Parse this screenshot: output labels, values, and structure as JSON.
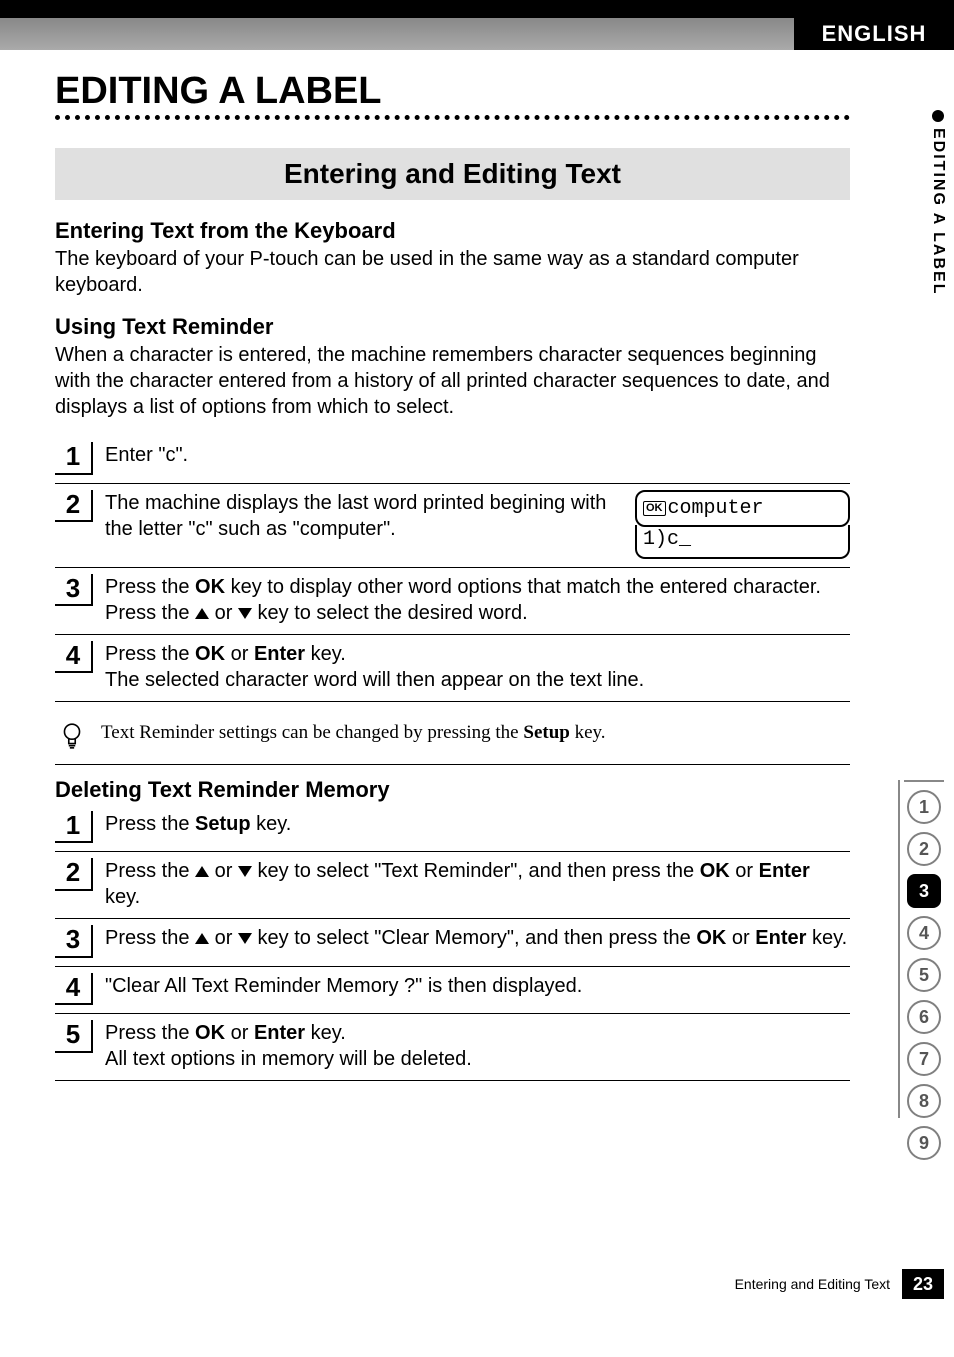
{
  "header": {
    "language": "ENGLISH"
  },
  "side": {
    "label": "EDITING A LABEL"
  },
  "chapter": {
    "title": "EDITING A LABEL"
  },
  "section": {
    "title": "Entering and Editing Text"
  },
  "sub1": {
    "heading": "Entering Text from the Keyboard",
    "body": "The keyboard of your P-touch can be used in the same way as a standard computer keyboard."
  },
  "sub2": {
    "heading": "Using Text Reminder",
    "body": "When a character is entered, the machine remembers character sequences beginning with the character entered from a history of all printed character sequences to date, and displays a list of options from which to select."
  },
  "steps1": [
    {
      "num": "1",
      "html": "Enter \"c\"."
    },
    {
      "num": "2",
      "html": "The machine displays the last word printed begining with the letter \"c\" such as \"computer\".",
      "lcd": true
    },
    {
      "num": "3",
      "html": "Press the <b>OK</b> key to display other word options that match the entered character. Press the <span class='tri-up'></span> or <span class='tri-down'></span> key to select the desired word."
    },
    {
      "num": "4",
      "html": "Press the <b>OK</b> or <b>Enter</b> key.<br>The selected character word will then appear on the text line."
    }
  ],
  "lcd": {
    "top_prefix": "OK",
    "top_text": "computer",
    "bottom_text": "1)c_"
  },
  "tip": {
    "pre": "Text Reminder settings can be changed by pressing the ",
    "bold": "Setup",
    "post": " key."
  },
  "sub3": {
    "heading": "Deleting Text Reminder Memory"
  },
  "steps2": [
    {
      "num": "1",
      "html": "Press the <b>Setup</b> key."
    },
    {
      "num": "2",
      "html": "Press the <span class='tri-up'></span> or <span class='tri-down'></span> key to select \"Text Reminder\", and then press the <b>OK</b> or <b>Enter</b> key."
    },
    {
      "num": "3",
      "html": "Press the <span class='tri-up'></span> or <span class='tri-down'></span> key to select \"Clear Memory\", and then press the <b>OK</b> or <b>Enter</b> key."
    },
    {
      "num": "4",
      "html": "\"Clear All Text Reminder Memory ?\" is then displayed."
    },
    {
      "num": "5",
      "html": "Press the <b>OK</b> or <b>Enter</b> key.<br>All text options in memory will be deleted."
    }
  ],
  "tabs": {
    "items": [
      "1",
      "2",
      "3",
      "4",
      "5",
      "6",
      "7",
      "8",
      "9"
    ],
    "active_index": 2
  },
  "footer": {
    "text": "Entering and Editing Text",
    "page": "23"
  },
  "colors": {
    "black": "#000000",
    "gray_band": "#999999",
    "section_bg": "#e0e0e0",
    "tab_border": "#808080"
  }
}
